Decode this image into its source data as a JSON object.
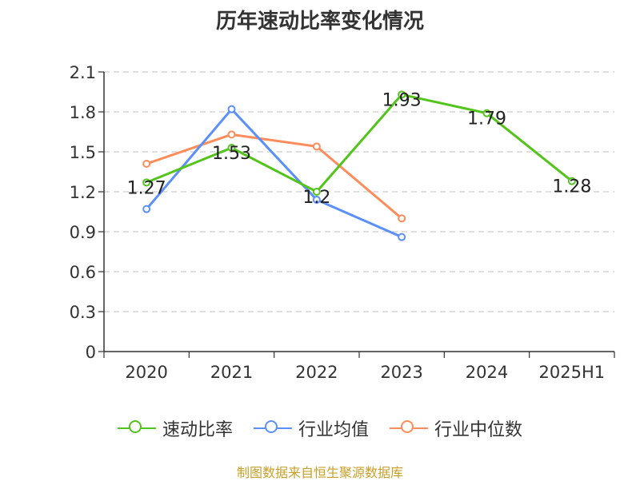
{
  "title": "历年速动比率变化情况",
  "source": "制图数据来自恒生聚源数据库",
  "chart_data": {
    "type": "line",
    "title": "历年速动比率变化情况",
    "categories": [
      "2020",
      "2021",
      "2022",
      "2023",
      "2024",
      "2025H1"
    ],
    "ylim": [
      0,
      2.1
    ],
    "yticks": [
      "0",
      "0.3",
      "0.6",
      "0.9",
      "1.2",
      "1.5",
      "1.8",
      "2.1"
    ],
    "grid": true,
    "legend_position": "bottom",
    "series": [
      {
        "name": "速动比率",
        "color": "#52c41a",
        "values": [
          1.27,
          1.53,
          1.2,
          1.93,
          1.79,
          1.28
        ],
        "labels": [
          "1.27",
          "1.53",
          "1.2",
          "1.93",
          "1.79",
          "1.28"
        ],
        "show_labels": true
      },
      {
        "name": "行业均值",
        "color": "#5b8ff9",
        "values": [
          1.07,
          1.82,
          1.14,
          0.86,
          null,
          null
        ],
        "show_labels": false
      },
      {
        "name": "行业中位数",
        "color": "#ff8c5a",
        "values": [
          1.41,
          1.63,
          1.54,
          1.0,
          null,
          null
        ],
        "show_labels": false
      }
    ]
  }
}
